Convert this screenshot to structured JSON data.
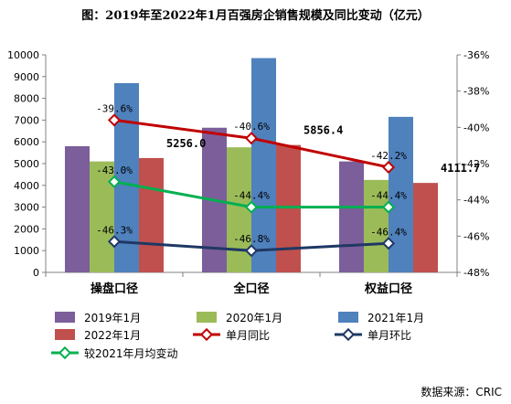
{
  "chart_data": {
    "type": "bar",
    "title": "图：2019年至2022年1月百强房企销售规模及同比变动（亿元）",
    "categories": [
      "操盘口径",
      "全口径",
      "权益口径"
    ],
    "ylim": [
      0,
      10000
    ],
    "yticks": [
      0,
      1000,
      2000,
      3000,
      4000,
      5000,
      6000,
      7000,
      8000,
      9000,
      10000
    ],
    "y2lim": [
      -48,
      -36
    ],
    "y2ticks": [
      "-48%",
      "-46%",
      "-44%",
      "-42%",
      "-40%",
      "-38%",
      "-36%"
    ],
    "bar_series": [
      {
        "name": "2019年1月",
        "color": "#7b5e9a",
        "values": [
          5800,
          6650,
          5100
        ]
      },
      {
        "name": "2020年1月",
        "color": "#9bbb59",
        "values": [
          5100,
          5750,
          4250
        ]
      },
      {
        "name": "2021年1月",
        "color": "#4f81bd",
        "values": [
          8700,
          9850,
          7150
        ]
      },
      {
        "name": "2022年1月",
        "color": "#c0504d",
        "values": [
          5256.0,
          5856.4,
          4111.7
        ],
        "labels": [
          "5256.0",
          "5856.4",
          "4111.7"
        ]
      }
    ],
    "line_series": [
      {
        "name": "单月同比",
        "color": "#c00000",
        "values": [
          -39.6,
          -40.6,
          -42.2
        ],
        "labels": [
          "-39.6%",
          "-40.6%",
          "-42.2%"
        ]
      },
      {
        "name": "单月环比",
        "color": "#1f3864",
        "values": [
          -46.3,
          -46.8,
          -46.4
        ],
        "labels": [
          "-46.3%",
          "-46.8%",
          "-46.4%"
        ]
      },
      {
        "name": "较2021年月均变动",
        "color": "#00b050",
        "values": [
          -43.0,
          -44.4,
          -44.4
        ],
        "labels": [
          "-43.0%",
          "-44.4%",
          "-44.4%"
        ]
      }
    ],
    "legend_order": [
      "2019年1月",
      "2020年1月",
      "2021年1月",
      "2022年1月",
      "单月同比",
      "单月环比",
      "较2021年月均变动"
    ],
    "legend_position": "bottom",
    "grid": false
  },
  "source": "数据来源：CRIC"
}
